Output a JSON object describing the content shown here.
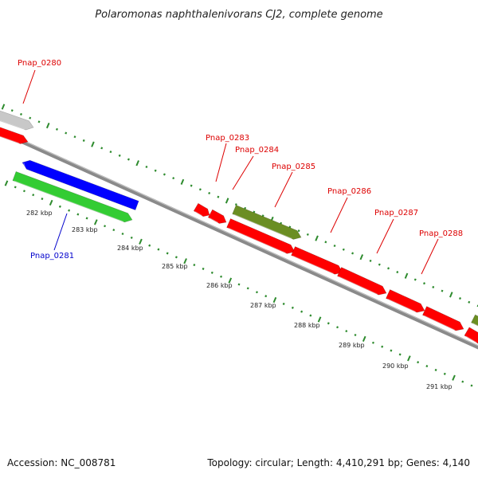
{
  "title": "Polaromonas naphthalenivorans CJ2, complete genome",
  "footer": {
    "accession": "Accession: NC_008781",
    "topology": "Topology: circular; Length: 4,410,291 bp; Genes: 4,140"
  },
  "colors": {
    "backbone": "#8a8a8a",
    "ticks": "#2e8b2e",
    "red_gene": "#ff0000",
    "blue_gene": "#0000ff",
    "green_gene": "#33cc33",
    "olive_gene": "#6b8e23",
    "gray_gene": "#c8c8c8",
    "label_red": "#dd0000",
    "label_blue": "#0000cc"
  },
  "scale": {
    "unit": "kbp",
    "labels": [
      "282 kbp",
      "283 kbp",
      "284 kbp",
      "285 kbp",
      "286 kbp",
      "287 kbp",
      "288 kbp",
      "289 kbp",
      "290 kbp",
      "291 kbp"
    ]
  },
  "genes": [
    {
      "name": "",
      "color": "gray",
      "strand": "+",
      "track": 1
    },
    {
      "name": "",
      "color": "red",
      "strand": "+",
      "track": 0
    },
    {
      "name": "",
      "color": "blue",
      "strand": "-",
      "track": 0
    },
    {
      "name": "",
      "color": "green",
      "strand": "+",
      "track": 1
    },
    {
      "name": "",
      "color": "red",
      "strand": "+",
      "track": 0
    },
    {
      "name": "",
      "color": "red",
      "strand": "+",
      "track": 0
    },
    {
      "name": "",
      "color": "olive",
      "strand": "+",
      "track": 1
    },
    {
      "name": "",
      "color": "red",
      "strand": "+",
      "track": 0
    },
    {
      "name": "",
      "color": "red",
      "strand": "+",
      "track": 0
    },
    {
      "name": "",
      "color": "red",
      "strand": "+",
      "track": 0
    },
    {
      "name": "",
      "color": "red",
      "strand": "+",
      "track": 0
    },
    {
      "name": "",
      "color": "red",
      "strand": "+",
      "track": 0
    },
    {
      "name": "",
      "color": "red",
      "strand": "+",
      "track": 0
    },
    {
      "name": "",
      "color": "olive",
      "strand": "+",
      "track": 1
    }
  ],
  "labels": [
    {
      "text": "Pnap_0280",
      "color": "red"
    },
    {
      "text": "Pnap_0281",
      "color": "blue"
    },
    {
      "text": "Pnap_0283",
      "color": "red"
    },
    {
      "text": "Pnap_0284",
      "color": "red"
    },
    {
      "text": "Pnap_0285",
      "color": "red"
    },
    {
      "text": "Pnap_0286",
      "color": "red"
    },
    {
      "text": "Pnap_0287",
      "color": "red"
    },
    {
      "text": "Pnap_0288",
      "color": "red"
    }
  ]
}
